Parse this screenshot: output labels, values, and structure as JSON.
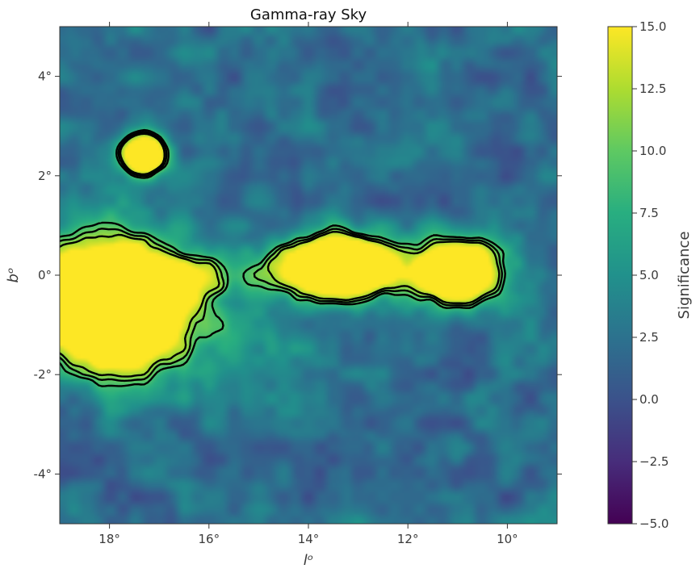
{
  "chart_data": {
    "type": "heatmap",
    "title": "Gamma-ray Sky",
    "xlabel": "lᵒ",
    "ylabel": "bᵒ",
    "xlim": [
      19,
      9
    ],
    "ylim": [
      -5,
      5
    ],
    "x_ticks": [
      {
        "value": 18,
        "label": "18°"
      },
      {
        "value": 16,
        "label": "16°"
      },
      {
        "value": 14,
        "label": "14°"
      },
      {
        "value": 12,
        "label": "12°"
      },
      {
        "value": 10,
        "label": "10°"
      }
    ],
    "y_ticks": [
      {
        "value": 4,
        "label": "4°"
      },
      {
        "value": 2,
        "label": "2°"
      },
      {
        "value": 0,
        "label": "0°"
      },
      {
        "value": -2,
        "label": "-2°"
      },
      {
        "value": -4,
        "label": "-4°"
      }
    ],
    "colormap": "viridis",
    "colorbar": {
      "label": "Significance",
      "range": [
        -5.0,
        15.0
      ],
      "ticks": [
        "−5.0",
        "−2.5",
        "0.0",
        "2.5",
        "5.0",
        "7.5",
        "10.0",
        "12.5",
        "15.0"
      ]
    },
    "sources": [
      {
        "l": 18.0,
        "b": -0.6,
        "sig_l": 1.0,
        "sig_b": 0.85,
        "peak": 38
      },
      {
        "l": 17.35,
        "b": 2.45,
        "sig_l": 0.3,
        "sig_b": 0.28,
        "peak": 26
      },
      {
        "l": 13.3,
        "b": 0.2,
        "sig_l": 0.75,
        "sig_b": 0.4,
        "peak": 30
      },
      {
        "l": 11.0,
        "b": 0.05,
        "sig_l": 0.55,
        "sig_b": 0.45,
        "peak": 28
      },
      {
        "l": 15.3,
        "b": 0.0,
        "sig_l": 1.5,
        "sig_b": 0.35,
        "peak": 7
      },
      {
        "l": 15.2,
        "b": -1.4,
        "sig_l": 1.3,
        "sig_b": 0.45,
        "peak": 3
      }
    ],
    "contours": [
      "black",
      "black",
      "black"
    ]
  }
}
